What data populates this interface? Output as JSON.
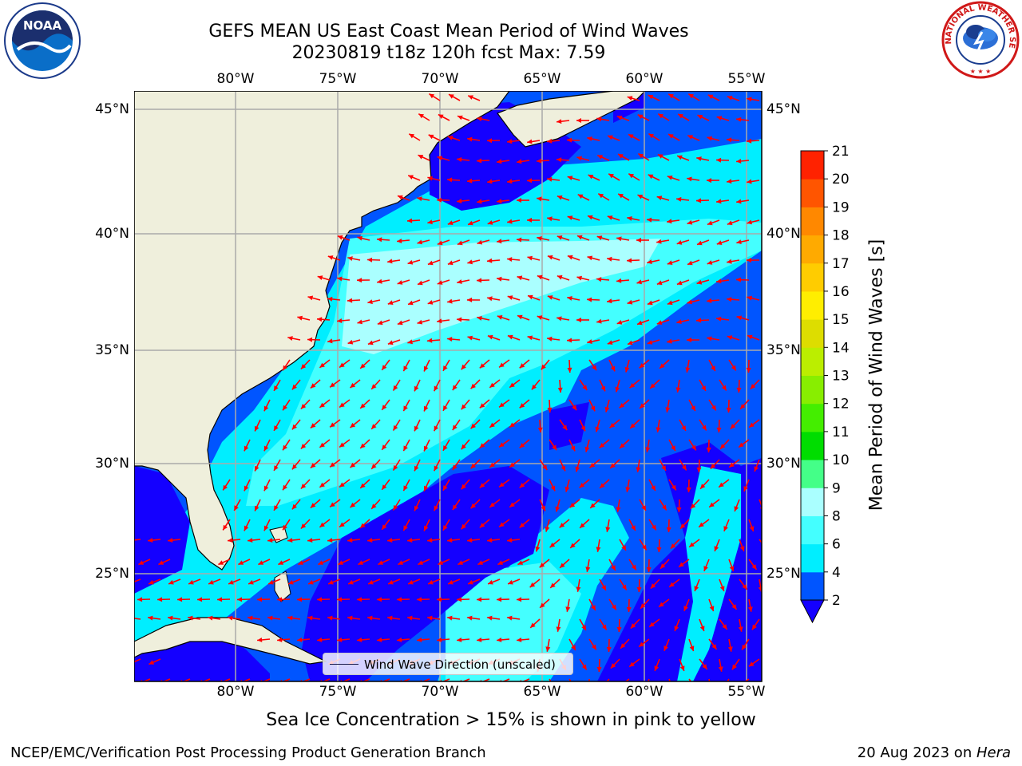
{
  "title": {
    "line1": "GEFS MEAN US East Coast Mean Period of Wind Waves",
    "line2": "20230819 t18z 120h fcst   Max: 7.59"
  },
  "logos": {
    "left": {
      "name": "noaa-logo",
      "text": "NOAA"
    },
    "right": {
      "name": "nws-logo",
      "text": "NATIONAL WEATHER SERVICE"
    }
  },
  "map": {
    "lon_labels": [
      "80°W",
      "75°W",
      "70°W",
      "65°W",
      "60°W",
      "55°W"
    ],
    "lat_labels": [
      "45°N",
      "40°N",
      "35°N",
      "30°N",
      "25°N"
    ],
    "lon_range": [
      -85,
      -54.5
    ],
    "lat_range": [
      20.5,
      46
    ],
    "land_color": "#efefdc",
    "grid": true,
    "arrow_color": "#ff0000"
  },
  "legend": {
    "label": "Wind Wave Direction (unscaled)",
    "placement": "bottom-center"
  },
  "colorbar": {
    "label": "Mean Period of Wind Waves [s]",
    "ticks": [
      "2",
      "4",
      "6",
      "8",
      "9",
      "10",
      "11",
      "12",
      "13",
      "14",
      "15",
      "16",
      "17",
      "18",
      "19",
      "20",
      "21"
    ],
    "colors": [
      "#0055ff",
      "#00eeff",
      "#44ffff",
      "#aaffff",
      "#44ff88",
      "#00dd00",
      "#44ee00",
      "#88ee00",
      "#bbee00",
      "#dddd00",
      "#ffee00",
      "#ffcc00",
      "#ffaa00",
      "#ff8800",
      "#ff5500",
      "#ff2200"
    ],
    "extend_color": "#1400ff"
  },
  "footer": {
    "note": "Sea Ice Concentration > 15% is shown in pink to yellow",
    "left": "NCEP/EMC/Verification Post Processing Product Generation Branch",
    "date": "20 Aug 2023 on ",
    "machine": "Hera"
  }
}
